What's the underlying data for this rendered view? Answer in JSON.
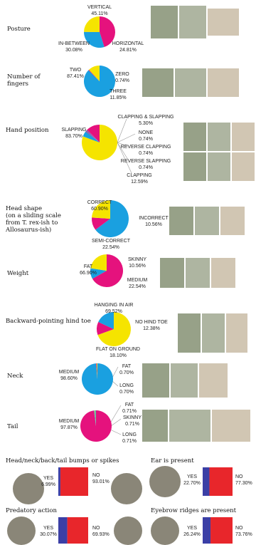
{
  "chart_data": [
    {
      "type": "pie",
      "title": "Posture",
      "categories": [
        "VERTICAL",
        "IN-BETWEEN",
        "HORIZONTAL"
      ],
      "values": [
        45.11,
        30.08,
        24.81
      ],
      "value_labels": [
        "45.11%",
        "30.08%",
        "24.81%"
      ],
      "colors": [
        "#e5127d",
        "#1aa0e0",
        "#f5e400"
      ]
    },
    {
      "type": "pie",
      "title": "Number of fingers",
      "categories": [
        "TWO",
        "ZERO",
        "THREE"
      ],
      "values": [
        87.41,
        0.74,
        11.85
      ],
      "value_labels": [
        "87.41%",
        "0.74%",
        "11.85%"
      ],
      "colors": [
        "#1aa0e0",
        "#e5127d",
        "#f5e400"
      ]
    },
    {
      "type": "pie",
      "title": "Hand position",
      "categories": [
        "SLAPPING",
        "CLAPPING & SLAPPING",
        "NONE",
        "REVERSE CLAPPING",
        "REVERSE SLAPPING",
        "CLAPPING"
      ],
      "values": [
        83.7,
        5.3,
        0.74,
        0.74,
        0.74,
        12.59
      ],
      "value_labels": [
        "83.70%",
        "5.30%",
        "0.74%",
        "0.74%",
        "0.74%",
        "12.59%"
      ],
      "colors": [
        "#f5e400",
        "#1aa0e0",
        "#e5127d",
        "#1aa0e0",
        "#e5127d",
        "#e5127d"
      ]
    },
    {
      "type": "pie",
      "title": "Head shape",
      "subtitle": "(on a sliding scale from T. rex-ish to Allosaurus-ish)",
      "categories": [
        "CORRECT",
        "INCORRECT",
        "SEMI-CORRECT"
      ],
      "values": [
        60.9,
        10.56,
        22.54
      ],
      "value_labels": [
        "60.90%",
        "10.56%",
        "22.54%"
      ],
      "colors": [
        "#1aa0e0",
        "#e5127d",
        "#f5e400"
      ]
    },
    {
      "type": "pie",
      "title": "Weight",
      "categories": [
        "FAT",
        "SKINNY",
        "MEDIUM"
      ],
      "values": [
        66.9,
        10.56,
        22.54
      ],
      "value_labels": [
        "66.90%",
        "10.56%",
        "22.54%"
      ],
      "colors": [
        "#e5127d",
        "#1aa0e0",
        "#f5e400"
      ]
    },
    {
      "type": "pie",
      "title": "Backward-pointing hind toe",
      "categories": [
        "HANGING IN AIR",
        "NO HIND TOE",
        "FLAT ON GROUND"
      ],
      "values": [
        69.52,
        12.38,
        18.1
      ],
      "value_labels": [
        "69.52%",
        "12.38%",
        "18.10%"
      ],
      "colors": [
        "#f5e400",
        "#e5127d",
        "#1aa0e0"
      ]
    },
    {
      "type": "pie",
      "title": "Neck",
      "categories": [
        "MEDIUM",
        "FAT",
        "LONG"
      ],
      "values": [
        98.6,
        0.7,
        0.7
      ],
      "value_labels": [
        "98.60%",
        "0.70%",
        "0.70%"
      ],
      "colors": [
        "#1aa0e0",
        "#e5127d",
        "#f5e400"
      ]
    },
    {
      "type": "pie",
      "title": "Tail",
      "categories": [
        "MEDIUM",
        "FAT",
        "SKINNY",
        "LONG"
      ],
      "values": [
        97.87,
        0.71,
        0.71,
        0.71
      ],
      "value_labels": [
        "97.87%",
        "0.71%",
        "0.71%",
        "0.71%"
      ],
      "colors": [
        "#e5127d",
        "#1aa0e0",
        "#f5e400",
        "#1aa0e0"
      ]
    },
    {
      "type": "bar",
      "title": "Head/neck/back/tail bumps or spikes",
      "categories": [
        "YES",
        "NO"
      ],
      "values": [
        6.99,
        93.01
      ],
      "value_labels": [
        "6.99%",
        "93.01%"
      ],
      "colors": [
        "#3b3fa6",
        "#e8262b"
      ]
    },
    {
      "type": "bar",
      "title": "Ear is present",
      "categories": [
        "YES",
        "NO"
      ],
      "values": [
        22.7,
        77.3
      ],
      "value_labels": [
        "22.70%",
        "77.30%"
      ],
      "colors": [
        "#3b3fa6",
        "#e8262b"
      ]
    },
    {
      "type": "bar",
      "title": "Predatory action",
      "categories": [
        "YES",
        "NO"
      ],
      "values": [
        30.07,
        69.93
      ],
      "value_labels": [
        "30.07%",
        "69.93%"
      ],
      "colors": [
        "#3b3fa6",
        "#e8262b"
      ]
    },
    {
      "type": "bar",
      "title": "Eyebrow ridges are present",
      "categories": [
        "YES",
        "NO"
      ],
      "values": [
        26.24,
        73.76
      ],
      "value_labels": [
        "26.24%",
        "73.76%"
      ],
      "colors": [
        "#3b3fa6",
        "#e8262b"
      ]
    }
  ]
}
